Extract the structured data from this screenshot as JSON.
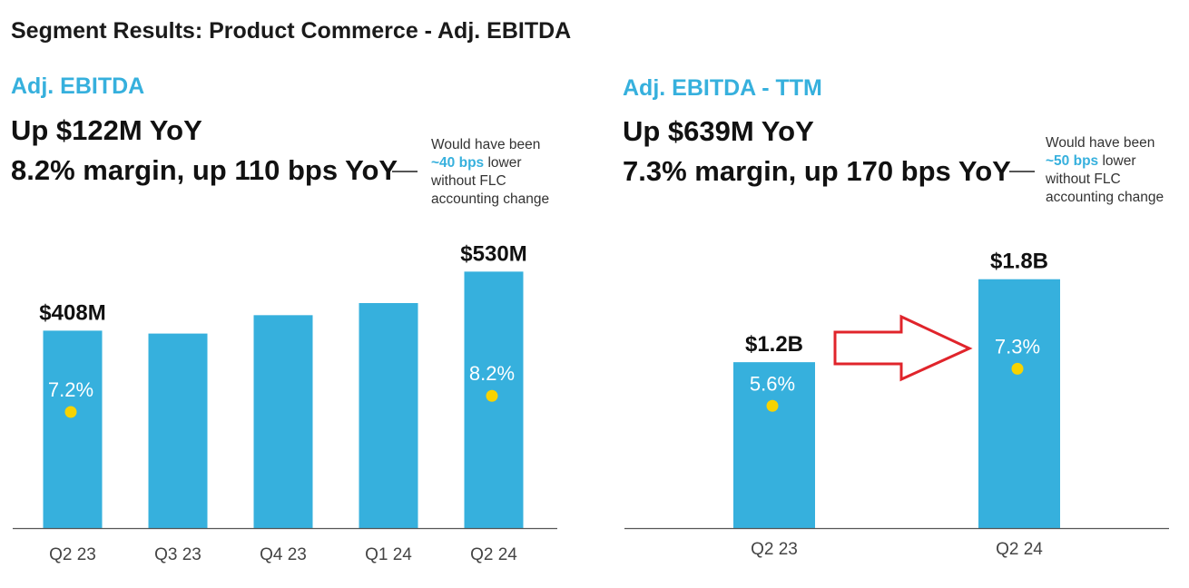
{
  "page_title": "Segment Results: Product Commerce - Adj. EBITDA",
  "left": {
    "section_title": "Adj. EBITDA",
    "headline_1": "Up $122M YoY",
    "headline_2": "8.2% margin, up 110 bps YoY",
    "note": {
      "line1": "Would have been",
      "highlight": "~40 bps",
      "line2_rest": " lower",
      "line3": "without FLC",
      "line4": "accounting change"
    }
  },
  "right": {
    "section_title": "Adj. EBITDA - TTM",
    "headline_1": "Up $639M YoY",
    "headline_2": "7.3% margin, up 170 bps YoY",
    "note": {
      "line1": "Would have been",
      "highlight": "~50 bps",
      "line2_rest": " lower",
      "line3": "without FLC",
      "line4": "accounting change"
    }
  },
  "colors": {
    "bar": "#36b0dd",
    "dot": "#f7d300",
    "arrow": "#e0242b",
    "axis": "#555555",
    "accent": "#36b0dd"
  },
  "chart_data": [
    {
      "type": "bar",
      "title": "Adj. EBITDA",
      "categories": [
        "Q2 23",
        "Q3 23",
        "Q4 23",
        "Q1 24",
        "Q2 24"
      ],
      "values": [
        408,
        402,
        440,
        465,
        530
      ],
      "value_labels": [
        "$408M",
        "",
        "",
        "",
        "$530M"
      ],
      "unit": "$M",
      "ylim": [
        0,
        600
      ],
      "margin_series": {
        "name": "Adj. EBITDA margin",
        "values": [
          7.2,
          null,
          null,
          null,
          8.2
        ],
        "labels": [
          "7.2%",
          "",
          "",
          "",
          "8.2%"
        ],
        "ylim": [
          0,
          18
        ]
      },
      "grid": false
    },
    {
      "type": "bar",
      "title": "Adj. EBITDA - TTM",
      "categories": [
        "Q2 23",
        "Q2 24"
      ],
      "values": [
        1.2,
        1.8
      ],
      "value_labels": [
        "$1.2B",
        "$1.8B"
      ],
      "unit": "$B",
      "ylim": [
        0,
        2.1
      ],
      "margin_series": {
        "name": "Adj. EBITDA margin",
        "values": [
          5.6,
          7.3
        ],
        "labels": [
          "5.6%",
          "7.3%"
        ],
        "ylim": [
          0,
          13.3
        ]
      },
      "grid": false
    }
  ]
}
